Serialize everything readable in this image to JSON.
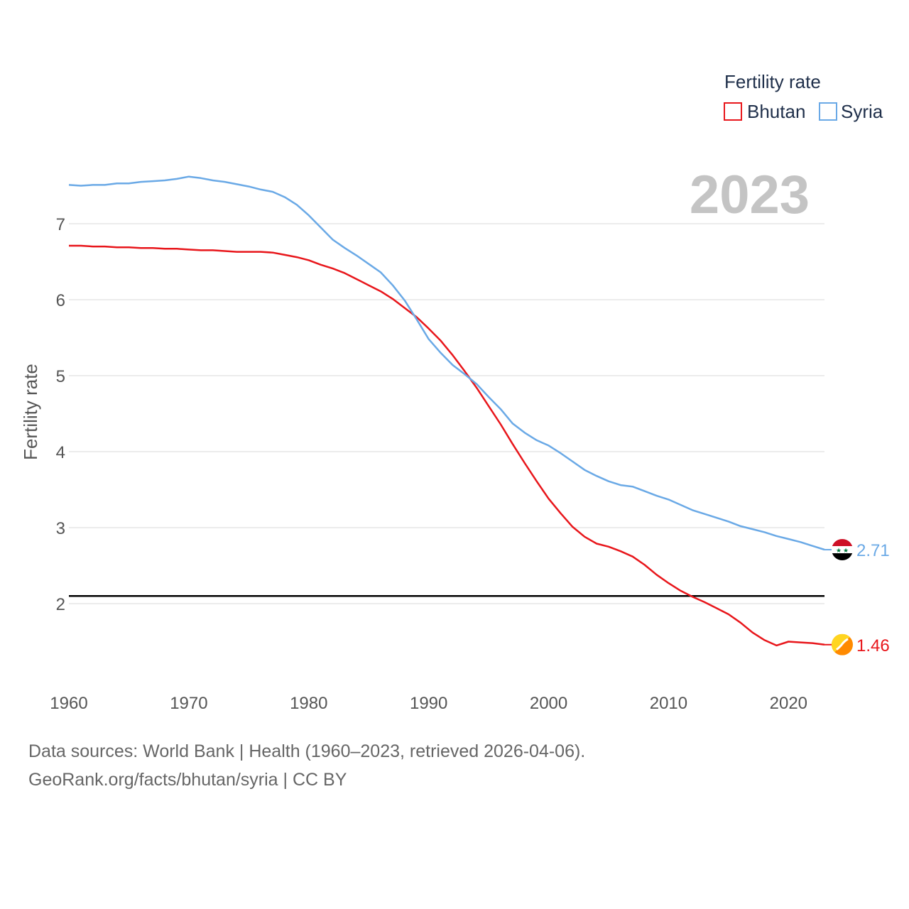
{
  "chart_data": {
    "type": "line",
    "title": "Fertility rate",
    "year_display": "2023",
    "ylabel": "Fertility rate",
    "xlabel": "",
    "xlim": [
      1960,
      2023
    ],
    "ylim": [
      1,
      7.9
    ],
    "xticks": [
      1960,
      1970,
      1980,
      1990,
      2000,
      2010,
      2020
    ],
    "yticks": [
      2,
      3,
      4,
      5,
      6,
      7
    ],
    "reference_line": {
      "y": 2.1,
      "color": "#000000"
    },
    "legend": {
      "title": "Fertility rate",
      "placement": "top-right"
    },
    "x": [
      1960,
      1961,
      1962,
      1963,
      1964,
      1965,
      1966,
      1967,
      1968,
      1969,
      1970,
      1971,
      1972,
      1973,
      1974,
      1975,
      1976,
      1977,
      1978,
      1979,
      1980,
      1981,
      1982,
      1983,
      1984,
      1985,
      1986,
      1987,
      1988,
      1989,
      1990,
      1991,
      1992,
      1993,
      1994,
      1995,
      1996,
      1997,
      1998,
      1999,
      2000,
      2001,
      2002,
      2003,
      2004,
      2005,
      2006,
      2007,
      2008,
      2009,
      2010,
      2011,
      2012,
      2013,
      2014,
      2015,
      2016,
      2017,
      2018,
      2019,
      2020,
      2021,
      2022,
      2023
    ],
    "series": [
      {
        "name": "Bhutan",
        "color": "#e8161b",
        "end_label": "1.46",
        "flag": "bhutan-flag",
        "values": [
          6.71,
          6.71,
          6.7,
          6.7,
          6.69,
          6.69,
          6.68,
          6.68,
          6.67,
          6.67,
          6.66,
          6.65,
          6.65,
          6.64,
          6.63,
          6.63,
          6.63,
          6.62,
          6.59,
          6.56,
          6.52,
          6.46,
          6.41,
          6.35,
          6.27,
          6.19,
          6.11,
          6.01,
          5.89,
          5.77,
          5.62,
          5.46,
          5.27,
          5.06,
          4.84,
          4.6,
          4.36,
          4.1,
          3.85,
          3.61,
          3.38,
          3.19,
          3.01,
          2.88,
          2.79,
          2.75,
          2.69,
          2.62,
          2.51,
          2.38,
          2.27,
          2.17,
          2.09,
          2.02,
          1.94,
          1.86,
          1.75,
          1.62,
          1.52,
          1.45,
          1.5,
          1.49,
          1.48,
          1.46
        ]
      },
      {
        "name": "Syria",
        "color": "#6aa9e6",
        "end_label": "2.71",
        "flag": "syria-flag",
        "values": [
          7.51,
          7.5,
          7.51,
          7.51,
          7.53,
          7.53,
          7.55,
          7.56,
          7.57,
          7.59,
          7.62,
          7.6,
          7.57,
          7.55,
          7.52,
          7.49,
          7.45,
          7.42,
          7.35,
          7.25,
          7.11,
          6.95,
          6.79,
          6.68,
          6.58,
          6.47,
          6.36,
          6.19,
          5.99,
          5.74,
          5.48,
          5.3,
          5.14,
          5.02,
          4.89,
          4.72,
          4.56,
          4.37,
          4.25,
          4.15,
          4.08,
          3.98,
          3.87,
          3.76,
          3.68,
          3.61,
          3.56,
          3.54,
          3.48,
          3.42,
          3.37,
          3.3,
          3.23,
          3.18,
          3.13,
          3.08,
          3.02,
          2.98,
          2.94,
          2.89,
          2.85,
          2.81,
          2.76,
          2.71
        ]
      }
    ]
  },
  "footer": {
    "line1": "Data sources: World Bank | Health (1960–2023, retrieved 2026-04-06).",
    "line2": "GeoRank.org/facts/bhutan/syria | CC BY"
  }
}
